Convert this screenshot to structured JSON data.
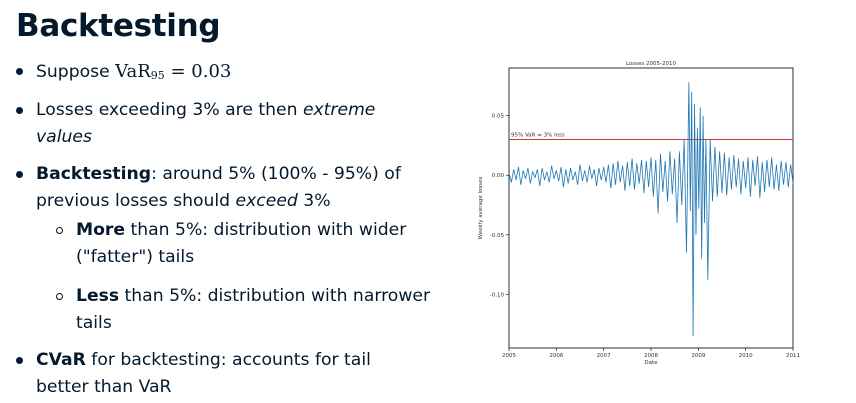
{
  "slide": {
    "title": "Backtesting"
  },
  "bullets": [
    {
      "prefix": "Suppose ",
      "math_main": "VaR",
      "math_sub": "95",
      "math_rest": " = 0.03"
    },
    {
      "line1_a": "Losses exceeding 3% are then ",
      "line1_em": "extreme",
      "line2_em": "values"
    },
    {
      "bold": "Backtesting",
      "line1_rest": ": around 5% (100% - 95%) of",
      "line2_a": "previous losses should ",
      "line2_em": "exceed",
      "line2_b": " 3%"
    },
    {
      "bold": "More",
      "line1_rest": " than 5%: distribution with wider",
      "line2": "(\"fatter\") tails"
    },
    {
      "bold": "Less",
      "line1_rest": " than 5%: distribution with narrower",
      "line2": "tails"
    },
    {
      "bold": "CVaR",
      "line1_rest": " for backtesting: accounts for tail",
      "line2": "better than VaR"
    }
  ],
  "chart_data": {
    "type": "line",
    "title": "Losses 2005-2010",
    "xlabel": "Date",
    "ylabel": "Weekly average losses",
    "xlim": [
      2005,
      2011
    ],
    "ylim": [
      -0.145,
      0.09
    ],
    "x_ticks": [
      "2005",
      "2006",
      "2007",
      "2008",
      "2009",
      "2010",
      "2011"
    ],
    "y_ticks": [
      "0.05",
      "0.00",
      "-0.05",
      "-0.10"
    ],
    "y_tick_values": [
      0.05,
      0.0,
      -0.05,
      -0.1
    ],
    "grid": false,
    "var_line": {
      "value": 0.03,
      "label": "95% VaR = 3% loss",
      "color": "#e03131"
    },
    "series": [
      {
        "color": "#1f77b4",
        "x": [
          2005.0,
          2005.05,
          2005.1,
          2005.15,
          2005.2,
          2005.25,
          2005.3,
          2005.35,
          2005.4,
          2005.45,
          2005.5,
          2005.55,
          2005.6,
          2005.65,
          2005.7,
          2005.75,
          2005.8,
          2005.85,
          2005.9,
          2005.95,
          2006.0,
          2006.05,
          2006.1,
          2006.15,
          2006.2,
          2006.25,
          2006.3,
          2006.35,
          2006.4,
          2006.45,
          2006.5,
          2006.55,
          2006.6,
          2006.65,
          2006.7,
          2006.75,
          2006.8,
          2006.85,
          2006.9,
          2006.95,
          2007.0,
          2007.05,
          2007.1,
          2007.15,
          2007.2,
          2007.25,
          2007.3,
          2007.35,
          2007.4,
          2007.45,
          2007.5,
          2007.55,
          2007.6,
          2007.65,
          2007.7,
          2007.75,
          2007.8,
          2007.85,
          2007.9,
          2007.95,
          2008.0,
          2008.05,
          2008.1,
          2008.15,
          2008.2,
          2008.25,
          2008.3,
          2008.35,
          2008.4,
          2008.45,
          2008.5,
          2008.55,
          2008.6,
          2008.65,
          2008.7,
          2008.75,
          2008.8,
          2008.83,
          2008.86,
          2008.89,
          2008.92,
          2008.95,
          2008.98,
          2009.01,
          2009.04,
          2009.07,
          2009.1,
          2009.13,
          2009.16,
          2009.2,
          2009.25,
          2009.3,
          2009.35,
          2009.4,
          2009.45,
          2009.5,
          2009.55,
          2009.6,
          2009.65,
          2009.7,
          2009.75,
          2009.8,
          2009.85,
          2009.9,
          2009.95,
          2010.0,
          2010.05,
          2010.1,
          2010.15,
          2010.2,
          2010.25,
          2010.3,
          2010.35,
          2010.4,
          2010.45,
          2010.5,
          2010.55,
          2010.6,
          2010.65,
          2010.7,
          2010.75,
          2010.8,
          2010.85,
          2010.9,
          2010.95,
          2011.0
        ],
        "y": [
          0.002,
          -0.006,
          0.005,
          -0.004,
          0.007,
          -0.008,
          0.004,
          -0.003,
          0.006,
          -0.007,
          0.003,
          -0.002,
          0.005,
          -0.009,
          0.006,
          -0.004,
          0.003,
          -0.006,
          0.008,
          -0.003,
          0.004,
          -0.005,
          0.007,
          -0.01,
          0.005,
          -0.007,
          0.006,
          -0.004,
          0.003,
          -0.008,
          0.009,
          -0.005,
          0.004,
          -0.006,
          0.008,
          -0.003,
          0.005,
          -0.009,
          0.006,
          -0.004,
          0.007,
          -0.006,
          0.009,
          -0.011,
          0.01,
          -0.008,
          0.012,
          -0.006,
          0.008,
          -0.013,
          0.011,
          -0.009,
          0.014,
          -0.012,
          0.01,
          -0.007,
          0.013,
          -0.015,
          0.012,
          -0.01,
          0.015,
          -0.018,
          0.013,
          -0.032,
          0.018,
          -0.014,
          0.012,
          -0.022,
          0.02,
          -0.016,
          0.014,
          -0.04,
          0.02,
          -0.025,
          0.03,
          -0.065,
          0.078,
          -0.03,
          0.07,
          -0.135,
          0.06,
          -0.05,
          0.04,
          -0.028,
          0.057,
          -0.07,
          0.05,
          -0.04,
          0.03,
          -0.088,
          0.03,
          -0.022,
          0.024,
          -0.018,
          0.02,
          -0.015,
          0.019,
          -0.017,
          0.015,
          -0.012,
          0.017,
          -0.01,
          0.014,
          -0.016,
          0.012,
          -0.011,
          0.015,
          -0.018,
          0.013,
          -0.009,
          0.016,
          -0.019,
          0.011,
          -0.014,
          0.013,
          -0.01,
          0.015,
          -0.012,
          0.009,
          -0.013,
          0.012,
          -0.008,
          0.011,
          -0.01,
          0.009,
          -0.007
        ]
      }
    ]
  }
}
